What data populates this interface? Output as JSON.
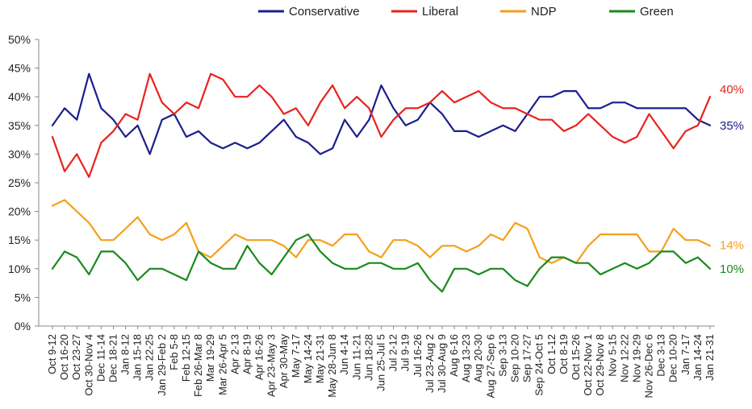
{
  "chart_data": {
    "type": "line",
    "categories": [
      "Oct 9-12",
      "Oct 16-20",
      "Oct 23-27",
      "Oct 30-Nov 4",
      "Dec 11-14",
      "Dec 18-21",
      "Jan 8-12",
      "Jan 15-18",
      "Jan 22-25",
      "Jan 29-Feb 2",
      "Feb 5-8",
      "Feb 12-15",
      "Feb 26-Mar 8",
      "Mar 19-29",
      "Mar 26-Apr 5",
      "Apr 2-13",
      "Apr 8-19",
      "Apr 16-26",
      "Apr 23-May 3",
      "Apr 30-May",
      "May 7-17",
      "May 14-24",
      "May 21-31",
      "May 28-Jun 8",
      "Jun 4-14",
      "Jun 11-21",
      "Jun 18-28",
      "Jun 25-Jul 5",
      "Jul 2-12",
      "Jul 9-19",
      "Jul 16-26",
      "Jul 23-Aug 2",
      "Jul 30-Aug 9",
      "Aug 6-16",
      "Aug 13-23",
      "Aug 20-30",
      "Aug 27-Sep 6",
      "Sep 3-13",
      "Sep 10-20",
      "Sep 17-27",
      "Sep 24-Oct 5",
      "Oct 1-12",
      "Oct 8-19",
      "Oct 15-26",
      "Oct 22-Nov 1",
      "Oct 29-Nov 8",
      "Nov 5-15",
      "Nov 12-22",
      "Nov 19-29",
      "Nov 26-Dec 6",
      "Dec 3-13",
      "Dec 10-20",
      "Jan 7-17",
      "Jan 14-24",
      "Jan 21-31"
    ],
    "ylim": [
      0,
      50
    ],
    "yticks": [
      "0%",
      "5%",
      "10%",
      "15%",
      "20%",
      "25%",
      "30%",
      "35%",
      "40%",
      "45%",
      "50%"
    ],
    "legend_position": "top",
    "grid": false,
    "series": [
      {
        "name": "Conservative",
        "color": "#1a1f8c",
        "end_label": "35%",
        "values": [
          35,
          38,
          36,
          44,
          38,
          36,
          33,
          35,
          30,
          36,
          37,
          33,
          34,
          32,
          31,
          32,
          31,
          32,
          34,
          36,
          33,
          32,
          30,
          31,
          36,
          33,
          36,
          42,
          38,
          35,
          36,
          39,
          37,
          34,
          34,
          33,
          34,
          35,
          34,
          37,
          40,
          40,
          41,
          41,
          38,
          38,
          39,
          39,
          38,
          38,
          38,
          38,
          38,
          36,
          35
        ]
      },
      {
        "name": "Liberal",
        "color": "#e8231e",
        "end_label": "40%",
        "values": [
          33,
          27,
          30,
          26,
          32,
          34,
          37,
          36,
          44,
          39,
          37,
          39,
          38,
          44,
          43,
          40,
          40,
          42,
          40,
          37,
          38,
          35,
          39,
          42,
          38,
          40,
          38,
          33,
          36,
          38,
          38,
          39,
          41,
          39,
          40,
          41,
          39,
          38,
          38,
          37,
          36,
          36,
          34,
          35,
          37,
          35,
          33,
          32,
          33,
          37,
          34,
          31,
          34,
          35,
          40
        ]
      },
      {
        "name": "NDP",
        "color": "#f5a01a",
        "end_label": "14%",
        "values": [
          21,
          22,
          20,
          18,
          15,
          15,
          17,
          19,
          16,
          15,
          16,
          18,
          13,
          12,
          14,
          16,
          15,
          15,
          15,
          14,
          12,
          15,
          15,
          14,
          16,
          16,
          13,
          12,
          15,
          15,
          14,
          12,
          14,
          14,
          13,
          14,
          16,
          15,
          18,
          17,
          12,
          11,
          12,
          11,
          14,
          16,
          16,
          16,
          16,
          13,
          13,
          17,
          15,
          15,
          14
        ]
      },
      {
        "name": "Green",
        "color": "#1a8a1e",
        "end_label": "10%",
        "values": [
          10,
          13,
          12,
          9,
          13,
          13,
          11,
          8,
          10,
          10,
          9,
          8,
          13,
          11,
          10,
          10,
          14,
          11,
          9,
          12,
          15,
          16,
          13,
          11,
          10,
          10,
          11,
          11,
          10,
          10,
          11,
          8,
          6,
          10,
          10,
          9,
          10,
          10,
          8,
          7,
          10,
          12,
          12,
          11,
          11,
          9,
          10,
          11,
          10,
          11,
          13,
          13,
          11,
          12,
          10
        ]
      }
    ]
  }
}
